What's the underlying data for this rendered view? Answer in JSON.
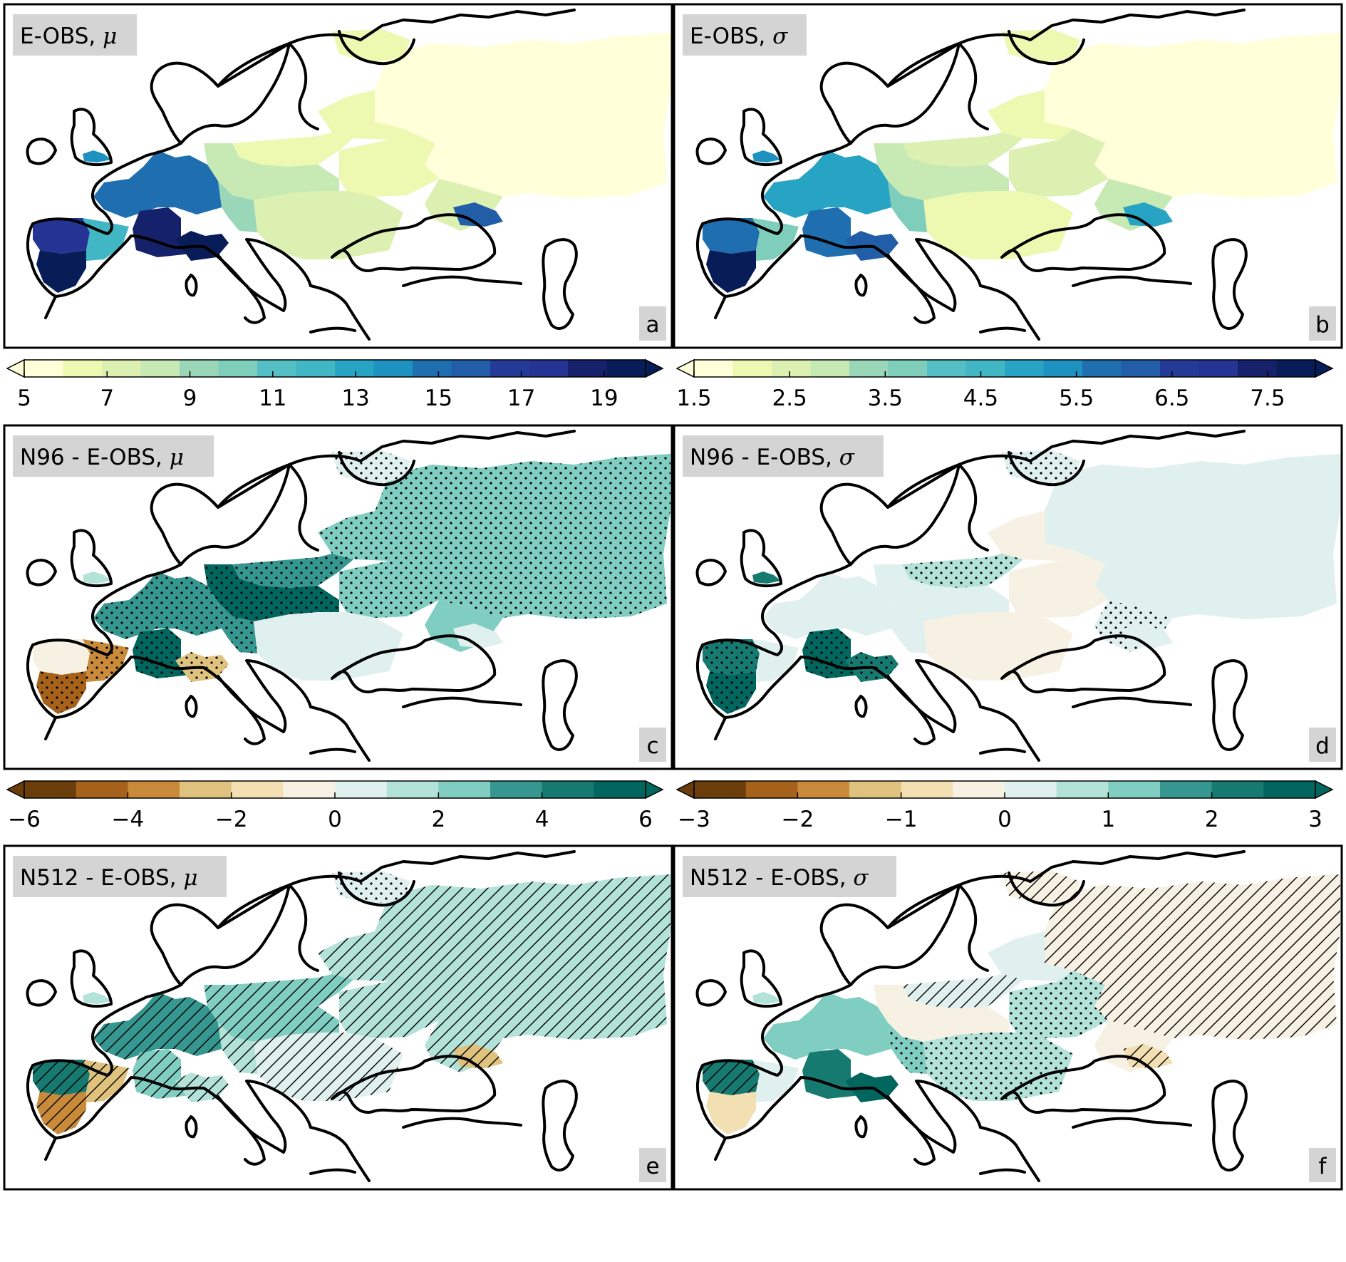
{
  "panels": [
    {
      "id": "a",
      "title": "E-OBS, ",
      "symbol": "μ",
      "letter": "a",
      "scale": "mu",
      "regions": [
        {
          "r": "russia",
          "v": 5.3
        },
        {
          "r": "finland",
          "v": 6.0
        },
        {
          "r": "baltic",
          "v": 6.2
        },
        {
          "r": "poland",
          "v": 6.4
        },
        {
          "r": "ukraine",
          "v": 6.6
        },
        {
          "r": "volga",
          "v": 7.2
        },
        {
          "r": "danube",
          "v": 7.0
        },
        {
          "r": "germany",
          "v": 8.2
        },
        {
          "r": "alps_e",
          "v": 9.6
        },
        {
          "r": "france_n",
          "v": 14.5
        },
        {
          "r": "france_c",
          "v": 18.3
        },
        {
          "r": "alps_w",
          "v": 19.4
        },
        {
          "r": "iberia_n",
          "v": 17.2
        },
        {
          "r": "iberia_e",
          "v": 12.0
        },
        {
          "r": "iberia_s",
          "v": 19.6
        },
        {
          "r": "caucasus",
          "v": 15.6
        },
        {
          "r": "uk",
          "v": 13.5
        }
      ]
    },
    {
      "id": "b",
      "title": "E-OBS, ",
      "symbol": "σ",
      "letter": "b",
      "scale": "sigma",
      "regions": [
        {
          "r": "russia",
          "v": 1.7
        },
        {
          "r": "finland",
          "v": 2.1
        },
        {
          "r": "baltic",
          "v": 2.2
        },
        {
          "r": "poland",
          "v": 2.6
        },
        {
          "r": "ukraine",
          "v": 2.4
        },
        {
          "r": "volga",
          "v": 2.8
        },
        {
          "r": "danube",
          "v": 2.3
        },
        {
          "r": "germany",
          "v": 3.0
        },
        {
          "r": "alps_e",
          "v": 3.6
        },
        {
          "r": "france_n",
          "v": 4.8
        },
        {
          "r": "france_c",
          "v": 5.6
        },
        {
          "r": "alps_w",
          "v": 6.2
        },
        {
          "r": "iberia_n",
          "v": 5.8
        },
        {
          "r": "iberia_e",
          "v": 3.9
        },
        {
          "r": "iberia_s",
          "v": 7.7
        },
        {
          "r": "caucasus",
          "v": 5.0
        },
        {
          "r": "uk",
          "v": 5.3
        }
      ]
    },
    {
      "id": "c",
      "title": "N96 - E-OBS, ",
      "symbol": "μ",
      "letter": "c",
      "scale": "diff6",
      "regions": [
        {
          "r": "russia",
          "v": 2.3,
          "h": "dots"
        },
        {
          "r": "finland",
          "v": 0.5,
          "h": "dots"
        },
        {
          "r": "baltic",
          "v": 2.4,
          "h": "dots"
        },
        {
          "r": "poland",
          "v": 3.3,
          "h": "dots"
        },
        {
          "r": "ukraine",
          "v": 2.3,
          "h": "dots"
        },
        {
          "r": "volga",
          "v": 2.2
        },
        {
          "r": "danube",
          "v": 0.7
        },
        {
          "r": "germany",
          "v": 5.4,
          "h": "dots"
        },
        {
          "r": "alps_e",
          "v": 3.2,
          "h": "dots"
        },
        {
          "r": "france_n",
          "v": 3.6,
          "h": "dots"
        },
        {
          "r": "france_c",
          "v": 5.6,
          "h": "dots"
        },
        {
          "r": "alps_w",
          "v": -2.7,
          "h": "dots"
        },
        {
          "r": "iberia_n",
          "v": -0.3
        },
        {
          "r": "iberia_e",
          "v": -3.4,
          "h": "dots"
        },
        {
          "r": "iberia_s",
          "v": -4.8,
          "h": "dots"
        },
        {
          "r": "caucasus",
          "v": 0.0
        },
        {
          "r": "uk",
          "v": 1.4
        }
      ]
    },
    {
      "id": "d",
      "title": "N96 - E-OBS, ",
      "symbol": "σ",
      "letter": "d",
      "scale": "diff3",
      "regions": [
        {
          "r": "russia",
          "v": 0.2
        },
        {
          "r": "finland",
          "v": 0.3,
          "h": "dots"
        },
        {
          "r": "baltic",
          "v": -0.3
        },
        {
          "r": "poland",
          "v": 0.6,
          "h": "dots"
        },
        {
          "r": "ukraine",
          "v": -0.3
        },
        {
          "r": "volga",
          "v": 0.3,
          "h": "dots"
        },
        {
          "r": "danube",
          "v": -0.4
        },
        {
          "r": "germany",
          "v": 0.3
        },
        {
          "r": "alps_e",
          "v": 0.4
        },
        {
          "r": "france_n",
          "v": 0.3
        },
        {
          "r": "france_c",
          "v": 2.6,
          "h": "dots"
        },
        {
          "r": "alps_w",
          "v": 2.2,
          "h": "dots"
        },
        {
          "r": "iberia_n",
          "v": 2.0,
          "h": "dots"
        },
        {
          "r": "iberia_e",
          "v": 0.2
        },
        {
          "r": "iberia_s",
          "v": 2.6,
          "h": "dots"
        },
        {
          "r": "caucasus",
          "v": 0.2
        },
        {
          "r": "uk",
          "v": 2.3
        }
      ]
    },
    {
      "id": "e",
      "title": "N512 - E-OBS, ",
      "symbol": "μ",
      "letter": "e",
      "scale": "diff6",
      "regions": [
        {
          "r": "russia",
          "v": 1.2,
          "h": "hatch"
        },
        {
          "r": "finland",
          "v": 0.5,
          "h": "dots"
        },
        {
          "r": "baltic",
          "v": 1.6,
          "h": "hatch"
        },
        {
          "r": "poland",
          "v": 2.2,
          "h": "hatch"
        },
        {
          "r": "ukraine",
          "v": 1.8,
          "h": "hatch"
        },
        {
          "r": "volga",
          "v": 1.4,
          "h": "hatch"
        },
        {
          "r": "danube",
          "v": 0.7,
          "h": "hatch"
        },
        {
          "r": "germany",
          "v": 2.6,
          "h": "hatch"
        },
        {
          "r": "alps_e",
          "v": 1.3,
          "h": "hatch"
        },
        {
          "r": "france_n",
          "v": 3.2,
          "h": "hatch"
        },
        {
          "r": "france_c",
          "v": 2.3,
          "h": "hatch"
        },
        {
          "r": "alps_w",
          "v": 1.6,
          "h": "hatch"
        },
        {
          "r": "iberia_n",
          "v": 4.6,
          "h": "hatch"
        },
        {
          "r": "iberia_e",
          "v": -2.5,
          "h": "hatch"
        },
        {
          "r": "iberia_s",
          "v": -3.5,
          "h": "hatch"
        },
        {
          "r": "caucasus",
          "v": -2.6,
          "h": "hatch"
        },
        {
          "r": "uk",
          "v": 1.7
        }
      ]
    },
    {
      "id": "f",
      "title": "N512 - E-OBS, ",
      "symbol": "σ",
      "letter": "f",
      "scale": "diff3",
      "regions": [
        {
          "r": "russia",
          "v": -0.3,
          "h": "hatch"
        },
        {
          "r": "finland",
          "v": -0.3,
          "h": "hatch"
        },
        {
          "r": "baltic",
          "v": 0.2
        },
        {
          "r": "poland",
          "v": 0.4,
          "h": "hatch"
        },
        {
          "r": "ukraine",
          "v": 0.6,
          "h": "dots"
        },
        {
          "r": "volga",
          "v": -0.3
        },
        {
          "r": "danube",
          "v": 0.6,
          "h": "dots"
        },
        {
          "r": "germany",
          "v": -0.3
        },
        {
          "r": "alps_e",
          "v": 1.0,
          "h": "dots"
        },
        {
          "r": "france_n",
          "v": 1.1
        },
        {
          "r": "france_c",
          "v": 2.0
        },
        {
          "r": "alps_w",
          "v": 2.7
        },
        {
          "r": "iberia_n",
          "v": 2.3,
          "h": "hatch"
        },
        {
          "r": "iberia_e",
          "v": 0.2
        },
        {
          "r": "iberia_s",
          "v": -0.9
        },
        {
          "r": "caucasus",
          "v": -0.8,
          "h": "hatch"
        },
        {
          "r": "uk",
          "v": 0.6
        }
      ]
    }
  ],
  "colorbars": [
    {
      "id": "mu",
      "min": 5,
      "max": 20,
      "bins": 12,
      "colors": [
        "#ffffd9",
        "#edf8b1",
        "#dcf0b2",
        "#c7e9b4",
        "#9ad6b8",
        "#7fcdbb",
        "#54bfc4",
        "#41b6c4",
        "#27a4c3",
        "#1d91c0",
        "#1f6eb0",
        "#225ea8",
        "#233b97",
        "#253494",
        "#16216b",
        "#081d58"
      ],
      "ticks": [
        5,
        7,
        9,
        11,
        13,
        15,
        17,
        19
      ],
      "tick_labels": [
        "5",
        "7",
        "9",
        "11",
        "13",
        "15",
        "17",
        "19"
      ],
      "extend": "both"
    },
    {
      "id": "sigma",
      "min": 1.5,
      "max": 8.0,
      "bins": 12,
      "colors": [
        "#ffffd9",
        "#edf8b1",
        "#dcf0b2",
        "#c7e9b4",
        "#9ad6b8",
        "#7fcdbb",
        "#54bfc4",
        "#41b6c4",
        "#27a4c3",
        "#1d91c0",
        "#1f6eb0",
        "#225ea8",
        "#233b97",
        "#253494",
        "#16216b",
        "#081d58"
      ],
      "ticks": [
        1.5,
        2.5,
        3.5,
        4.5,
        5.5,
        6.5,
        7.5
      ],
      "tick_labels": [
        "1.5",
        "2.5",
        "3.5",
        "4.5",
        "5.5",
        "6.5",
        "7.5"
      ],
      "extend": "both"
    },
    {
      "id": "diff6",
      "min": -6,
      "max": 6,
      "bins": 12,
      "colors": [
        "#6b3d0b",
        "#a6611a",
        "#c98a3a",
        "#dfc27d",
        "#f2dfb2",
        "#f7f1e3",
        "#e0f0ee",
        "#b3e2d9",
        "#80cdc1",
        "#35978f",
        "#177a70",
        "#01665e"
      ],
      "ticks": [
        -6,
        -4,
        -2,
        0,
        2,
        4,
        6
      ],
      "tick_labels": [
        "−6",
        "−4",
        "−2",
        "0",
        "2",
        "4",
        "6"
      ],
      "extend": "both"
    },
    {
      "id": "diff3",
      "min": -3,
      "max": 3,
      "bins": 12,
      "colors": [
        "#6b3d0b",
        "#a6611a",
        "#c98a3a",
        "#dfc27d",
        "#f2dfb2",
        "#f7f1e3",
        "#e0f0ee",
        "#b3e2d9",
        "#80cdc1",
        "#35978f",
        "#177a70",
        "#01665e"
      ],
      "ticks": [
        -3,
        -2,
        -1,
        0,
        1,
        2,
        3
      ],
      "tick_labels": [
        "−3",
        "−2",
        "−1",
        "0",
        "1",
        "2",
        "3"
      ],
      "extend": "both"
    }
  ],
  "colors": {
    "frame": "#000000",
    "label_box": "#d4d4d4",
    "coast": "#000000"
  }
}
